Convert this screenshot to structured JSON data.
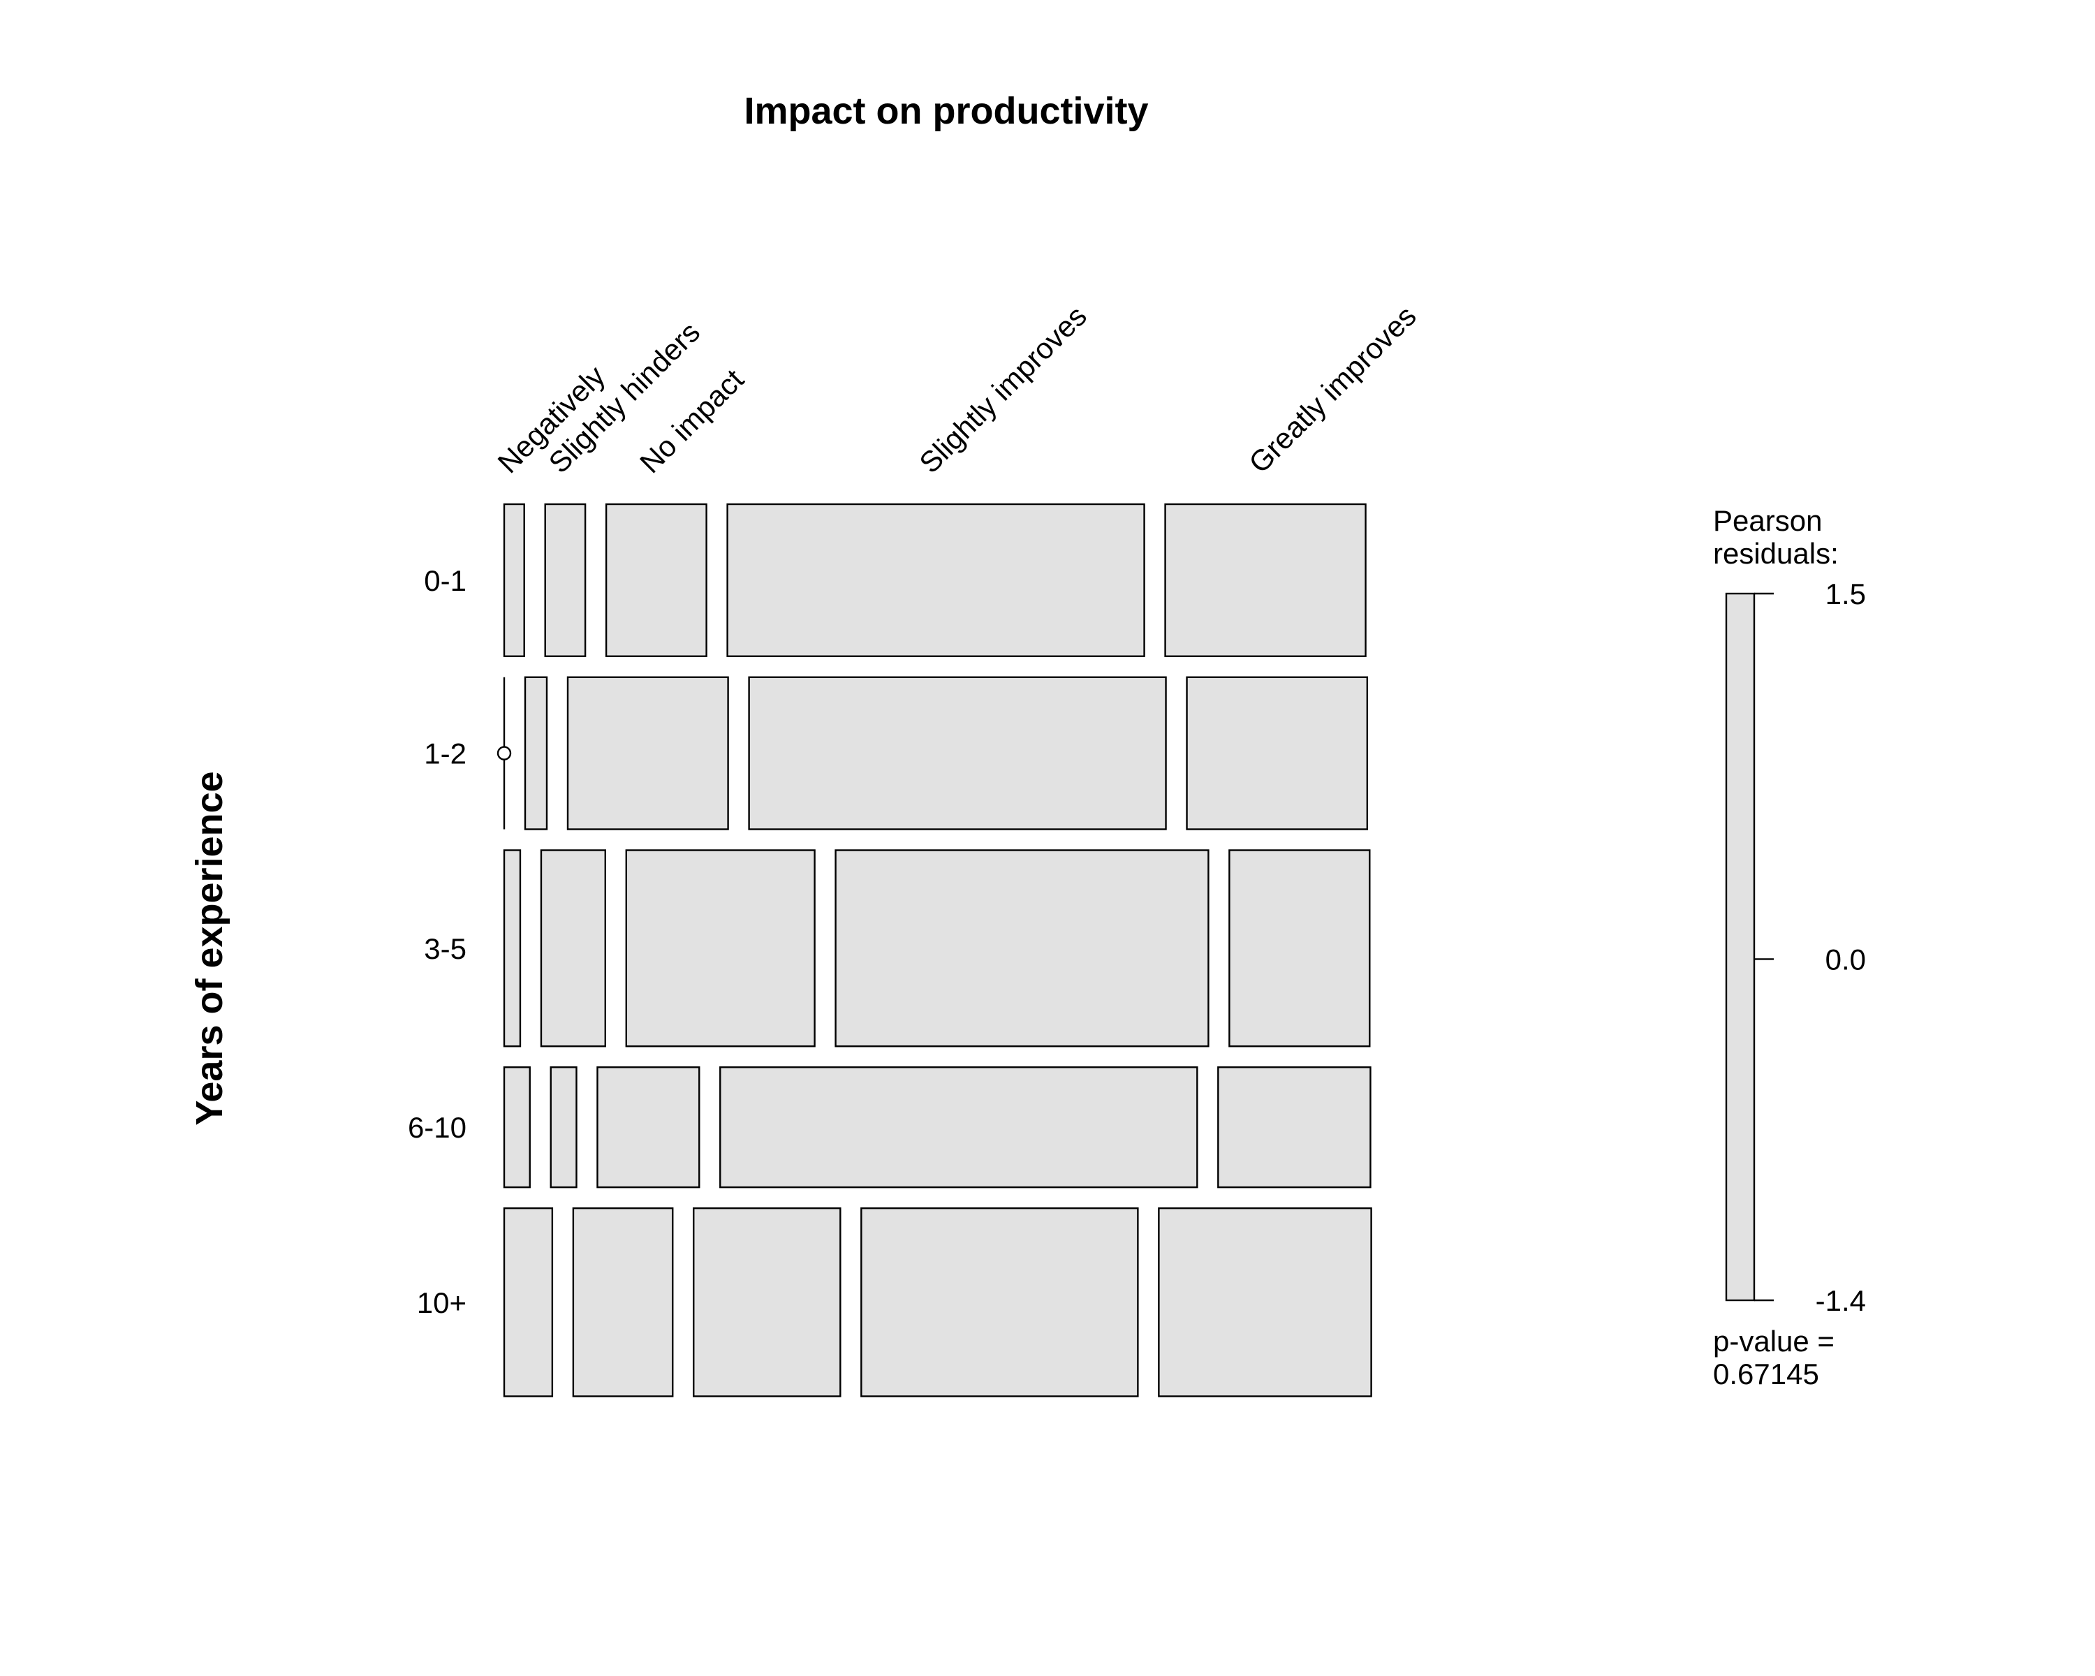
{
  "chart_data": {
    "type": "mosaic",
    "title": "Impact on productivity",
    "xlabel": "",
    "ylabel": "Years of experience",
    "columns": [
      "Negatively",
      "Slightly hinders",
      "No impact",
      "Slightly improves",
      "Greatly improves"
    ],
    "rows": [
      {
        "name": "0-1",
        "proportions": [
          0.025,
          0.05,
          0.125,
          0.52,
          0.25
        ]
      },
      {
        "name": "1-2",
        "proportions": [
          0.0,
          0.027,
          0.2,
          0.52,
          0.225
        ]
      },
      {
        "name": "3-5",
        "proportions": [
          0.02,
          0.08,
          0.235,
          0.465,
          0.175
        ]
      },
      {
        "name": "6-10",
        "proportions": [
          0.032,
          0.032,
          0.127,
          0.595,
          0.19
        ]
      },
      {
        "name": "10+",
        "proportions": [
          0.06,
          0.124,
          0.183,
          0.345,
          0.265
        ]
      }
    ],
    "row_shares": [
      0.19,
      0.19,
      0.245,
      0.15,
      0.235
    ],
    "fill_color": "#e2e2e2",
    "legend": {
      "title_line1": "Pearson",
      "title_line2": "residuals:",
      "ticks": [
        "1.5",
        "0.0",
        "-1.4"
      ],
      "range": [
        -1.4,
        1.5
      ],
      "pvalue_line1": "p-value =",
      "pvalue_line2": "0.67145",
      "placement": "right"
    }
  }
}
